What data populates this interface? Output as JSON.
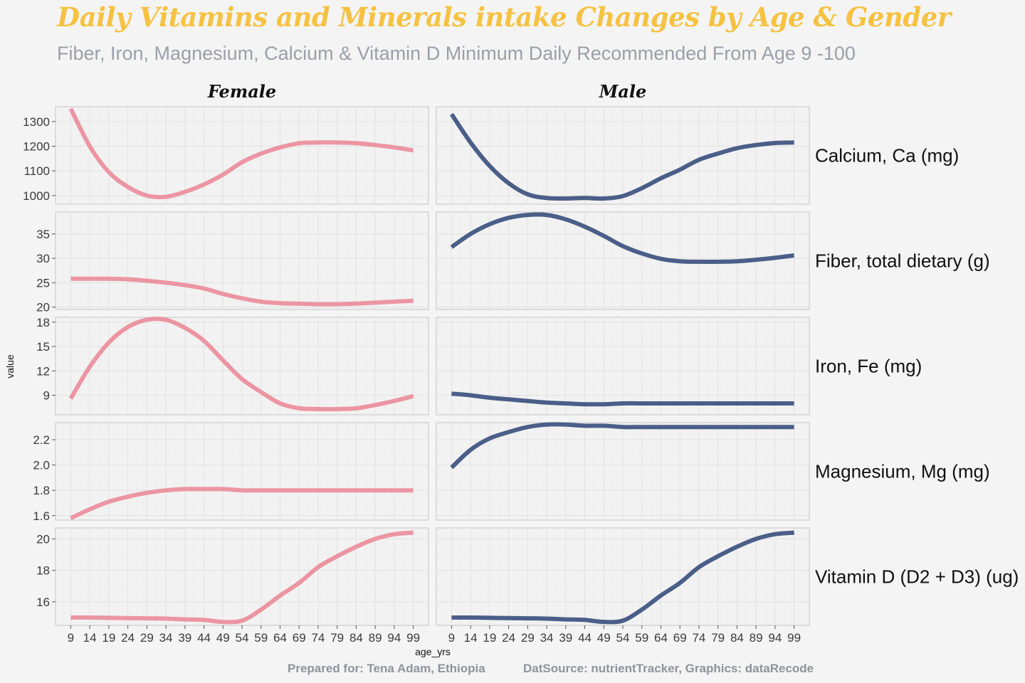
{
  "title": "Daily Vitamins and Minerals intake Changes by Age & Gender",
  "subtitle": "Fiber, Iron, Magnesium, Calcium & Vitamin D Minimum Daily Recommended From Age 9 -100",
  "caption": {
    "prepared_for": "Prepared for: Tena Adam, Ethiopia",
    "source": "DatSource: nutrientTracker, Graphics: dataRecode"
  },
  "colors": {
    "female": "#ec95a2",
    "male": "#4a5e88",
    "title": "#f5c242",
    "subtitle": "#9a9fa8"
  },
  "chart_data": {
    "type": "line",
    "facets": "rows = nutrient, columns = gender",
    "xlabel": "age_yrs",
    "ylabel": "value",
    "x_ticks": [
      9,
      14,
      19,
      24,
      29,
      34,
      39,
      44,
      49,
      54,
      59,
      64,
      69,
      74,
      79,
      84,
      89,
      94,
      99
    ],
    "xlim": [
      5,
      103
    ],
    "columns": [
      "Female",
      "Male"
    ],
    "grid": true,
    "legend": "none",
    "x": [
      9,
      14,
      19,
      24,
      29,
      34,
      39,
      44,
      49,
      54,
      59,
      64,
      69,
      74,
      79,
      84,
      89,
      94,
      99
    ],
    "panels": [
      {
        "label": "Calcium, Ca (mg)",
        "ylim": [
          965,
          1360
        ],
        "y_ticks": [
          1000,
          1100,
          1200,
          1300
        ],
        "series": [
          {
            "name": "Female",
            "values": [
              1352,
              1200,
              1095,
              1035,
              1000,
              995,
              1015,
              1045,
              1085,
              1135,
              1170,
              1195,
              1212,
              1215,
              1215,
              1212,
              1205,
              1195,
              1183
            ]
          },
          {
            "name": "Male",
            "values": [
              1330,
              1215,
              1120,
              1050,
              1005,
              990,
              988,
              990,
              988,
              998,
              1030,
              1070,
              1105,
              1145,
              1170,
              1192,
              1205,
              1213,
              1215
            ]
          }
        ]
      },
      {
        "label": "Fiber, total dietary (g)",
        "ylim": [
          19.5,
          39.5
        ],
        "y_ticks": [
          20,
          25,
          30,
          35
        ],
        "series": [
          {
            "name": "Female",
            "values": [
              25.8,
              25.8,
              25.8,
              25.7,
              25.4,
              25,
              24.5,
              23.8,
              22.7,
              21.8,
              21.1,
              20.8,
              20.7,
              20.6,
              20.6,
              20.7,
              20.9,
              21.1,
              21.3
            ]
          },
          {
            "name": "Male",
            "values": [
              32.3,
              35,
              37,
              38.3,
              38.9,
              38.9,
              38,
              36.5,
              34.6,
              32.5,
              31,
              29.9,
              29.4,
              29.3,
              29.3,
              29.4,
              29.7,
              30.1,
              30.6
            ]
          }
        ]
      },
      {
        "label": "Iron, Fe (mg)",
        "ylim": [
          6.6,
          18.6
        ],
        "y_ticks": [
          9,
          12,
          15,
          18
        ],
        "series": [
          {
            "name": "Female",
            "values": [
              8.6,
              12.5,
              15.5,
              17.4,
              18.3,
              18.3,
              17.3,
              15.7,
              13.3,
              11,
              9.4,
              8,
              7.4,
              7.3,
              7.3,
              7.4,
              7.8,
              8.3,
              8.9
            ]
          },
          {
            "name": "Male",
            "values": [
              9.2,
              9,
              8.7,
              8.5,
              8.3,
              8.1,
              8,
              7.9,
              7.9,
              8,
              8,
              8,
              8,
              8,
              8,
              8,
              8,
              8,
              8
            ]
          }
        ]
      },
      {
        "label": "Magnesium, Mg (mg)",
        "ylim": [
          1.565,
          2.335
        ],
        "y_ticks": [
          1.6,
          1.8,
          2.0,
          2.2
        ],
        "y_tick_labels": [
          "1.6",
          "1.8",
          "2.0",
          "2.2"
        ],
        "series": [
          {
            "name": "Female",
            "values": [
              1.58,
              1.65,
              1.71,
              1.75,
              1.78,
              1.8,
              1.81,
              1.81,
              1.81,
              1.8,
              1.8,
              1.8,
              1.8,
              1.8,
              1.8,
              1.8,
              1.8,
              1.8,
              1.8
            ]
          },
          {
            "name": "Male",
            "values": [
              1.98,
              2.12,
              2.21,
              2.26,
              2.3,
              2.32,
              2.32,
              2.31,
              2.31,
              2.3,
              2.3,
              2.3,
              2.3,
              2.3,
              2.3,
              2.3,
              2.3,
              2.3,
              2.3
            ]
          }
        ]
      },
      {
        "label": "Vitamin D (D2 + D3) (ug)",
        "ylim": [
          14.5,
          20.7
        ],
        "y_ticks": [
          16,
          18,
          20
        ],
        "series": [
          {
            "name": "Female",
            "values": [
              15,
              15,
              14.98,
              14.96,
              14.95,
              14.93,
              14.88,
              14.85,
              14.72,
              14.8,
              15.5,
              16.4,
              17.2,
              18.2,
              18.9,
              19.5,
              20,
              20.3,
              20.4
            ]
          },
          {
            "name": "Male",
            "values": [
              15,
              15,
              14.98,
              14.96,
              14.95,
              14.93,
              14.88,
              14.85,
              14.72,
              14.8,
              15.5,
              16.4,
              17.2,
              18.2,
              18.9,
              19.5,
              20,
              20.3,
              20.4
            ]
          }
        ]
      }
    ]
  }
}
